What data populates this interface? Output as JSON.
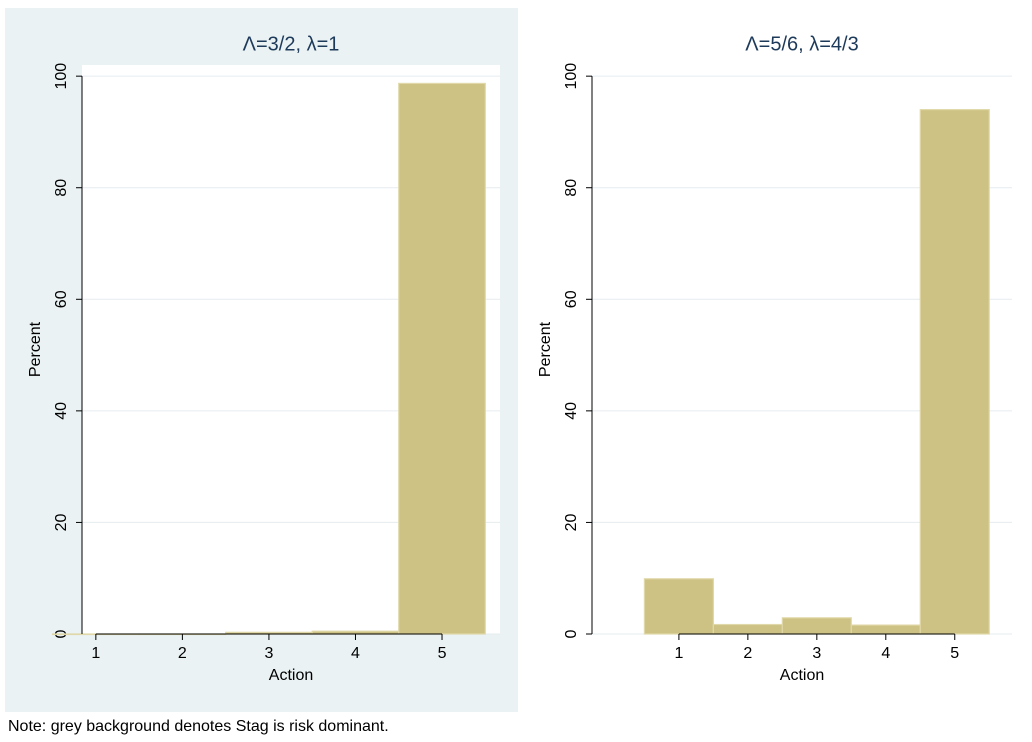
{
  "chart_data": [
    {
      "type": "bar",
      "title": "Λ=3/2, λ=1",
      "x_label": "Action",
      "y_label": "Percent",
      "x": [
        1,
        2,
        3,
        4,
        5
      ],
      "values": [
        0,
        0,
        0.3,
        0.5,
        98.7
      ],
      "color": "#cdc283",
      "background": "#eaf2f3",
      "xlim": [
        0.84,
        5.67
      ],
      "xticks": [
        1,
        2,
        3,
        4,
        5
      ],
      "ylim": [
        0,
        102
      ],
      "yticks": [
        0,
        20,
        40,
        60,
        80,
        100
      ],
      "grid": true
    },
    {
      "type": "bar",
      "title": "Λ=5/6, λ=4/3",
      "x_label": "Action",
      "y_label": "Percent",
      "x": [
        1,
        2,
        3,
        4,
        5
      ],
      "values": [
        9.9,
        1.7,
        2.9,
        1.6,
        94
      ],
      "color": "#cdc283",
      "background": "#ffffff",
      "xlim": [
        -0.26,
        5.83
      ],
      "xticks": [
        1,
        2,
        3,
        4,
        5
      ],
      "ylim": [
        0,
        102
      ],
      "yticks": [
        0,
        20,
        40,
        60,
        80,
        100
      ],
      "grid": true
    }
  ],
  "note": "Note: grey background denotes Stag is risk dominant."
}
